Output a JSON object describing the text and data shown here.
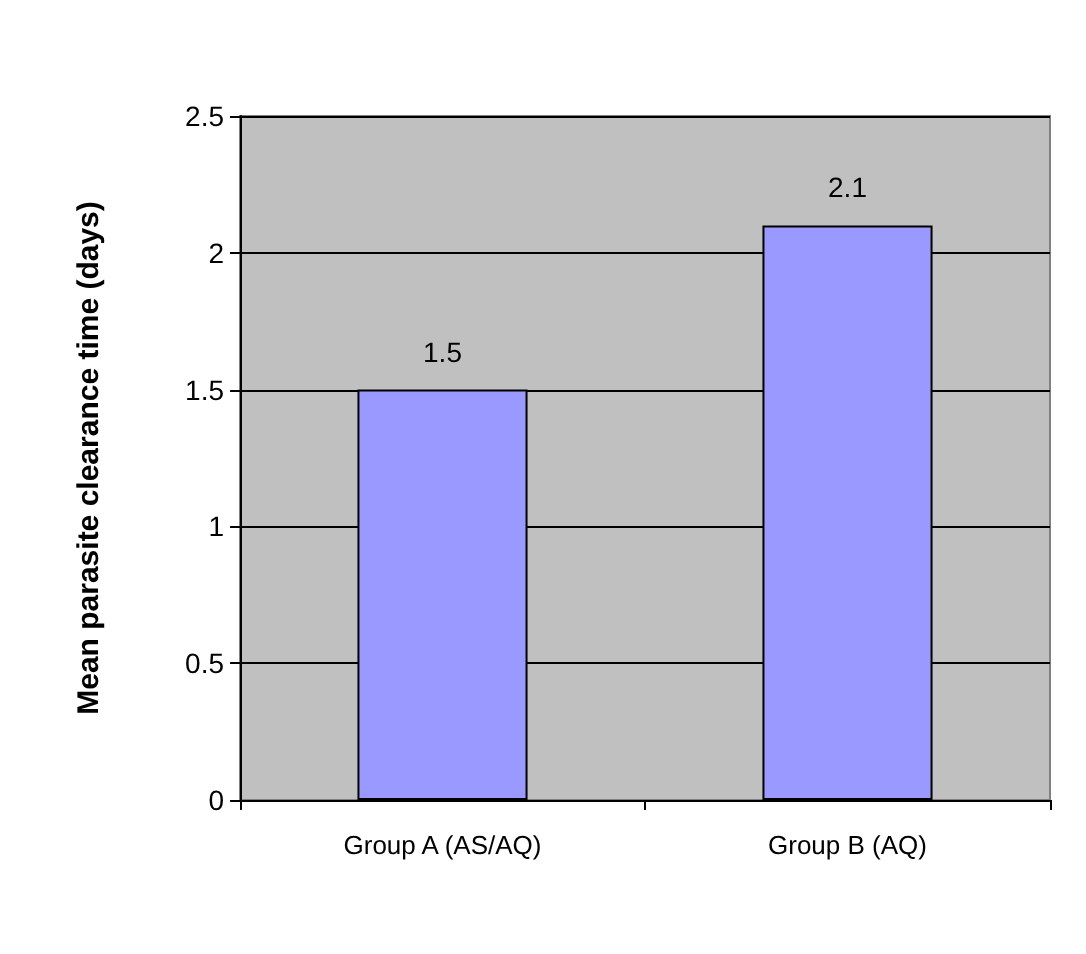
{
  "chart_data": {
    "type": "bar",
    "ylabel": "Mean parasite clearance time (days)",
    "categories": [
      "Group A (AS/AQ)",
      "Group B (AQ)"
    ],
    "values": [
      1.5,
      2.1
    ],
    "color": "#9999ff",
    "ylim": [
      0,
      2.5
    ],
    "yticks": [
      0,
      0.5,
      1,
      1.5,
      2,
      2.5
    ],
    "grid": "y",
    "data_labels": true
  }
}
